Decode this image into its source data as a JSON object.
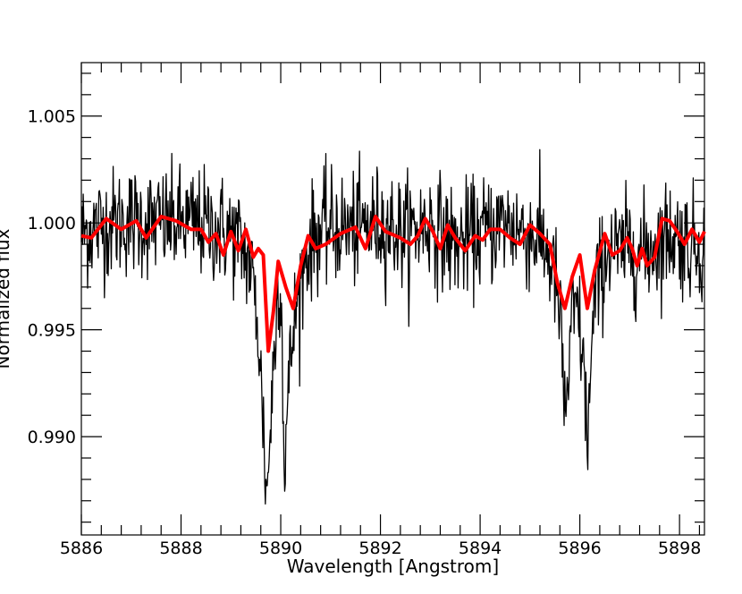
{
  "chart_data": {
    "type": "line",
    "title": "",
    "xlabel": "Wavelength [Angstrom]",
    "ylabel": "Normalized flux",
    "xlim": [
      5886.0,
      5898.5
    ],
    "ylim": [
      0.9854,
      1.0075
    ],
    "grid": false,
    "x_ticks": [
      {
        "value": 5886,
        "label": "5886"
      },
      {
        "value": 5888,
        "label": "5888"
      },
      {
        "value": 5890,
        "label": "5890"
      },
      {
        "value": 5892,
        "label": "5892"
      },
      {
        "value": 5894,
        "label": "5894"
      },
      {
        "value": 5896,
        "label": "5896"
      },
      {
        "value": 5898,
        "label": "5898"
      }
    ],
    "y_ticks": [
      {
        "value": 0.99,
        "label": "0.990"
      },
      {
        "value": 0.995,
        "label": "0.995"
      },
      {
        "value": 1.0,
        "label": "1.000"
      },
      {
        "value": 1.005,
        "label": "1.005"
      }
    ],
    "series": [
      {
        "color": "#000000",
        "noise_sigma": 0.0013,
        "x": [
          5886.0,
          5886.3,
          5886.6,
          5887.0,
          5887.5,
          5888.0,
          5888.5,
          5889.0,
          5889.2,
          5889.4,
          5889.55,
          5889.65,
          5889.72,
          5889.78,
          5889.85,
          5889.92,
          5890.0,
          5890.07,
          5890.15,
          5890.25,
          5890.35,
          5890.5,
          5890.7,
          5891.0,
          5891.5,
          5892.0,
          5892.5,
          5893.0,
          5893.5,
          5894.0,
          5894.5,
          5895.0,
          5895.3,
          5895.5,
          5895.62,
          5895.7,
          5895.78,
          5895.85,
          5895.95,
          5896.05,
          5896.15,
          5896.2,
          5896.3,
          5896.45,
          5896.6,
          5896.8,
          5897.0,
          5897.2,
          5897.5,
          5897.8,
          5898.0,
          5898.2,
          5898.5
        ],
        "y": [
          0.9995,
          0.9998,
          1.0,
          1.0001,
          1.0,
          1.0,
          0.9999,
          0.9995,
          0.999,
          0.998,
          0.995,
          0.9905,
          0.987,
          0.99,
          0.993,
          0.996,
          0.998,
          0.9885,
          0.992,
          0.995,
          0.9965,
          0.9985,
          0.9995,
          0.9998,
          0.9997,
          1.0,
          0.9995,
          1.0,
          0.999,
          0.9995,
          1.0,
          0.9995,
          0.999,
          0.9975,
          0.995,
          0.991,
          0.993,
          0.9955,
          0.996,
          0.994,
          0.99,
          0.992,
          0.9965,
          0.998,
          0.999,
          0.9985,
          0.999,
          0.9985,
          0.999,
          0.9995,
          0.9993,
          0.999,
          0.999
        ]
      },
      {
        "color": "#ff0000",
        "x": [
          5886.0,
          5886.2,
          5886.5,
          5886.8,
          5887.1,
          5887.3,
          5887.6,
          5887.9,
          5888.2,
          5888.4,
          5888.55,
          5888.7,
          5888.85,
          5889.0,
          5889.15,
          5889.3,
          5889.45,
          5889.55,
          5889.65,
          5889.75,
          5889.85,
          5889.95,
          5890.1,
          5890.25,
          5890.4,
          5890.55,
          5890.7,
          5890.9,
          5891.2,
          5891.5,
          5891.7,
          5891.9,
          5892.1,
          5892.4,
          5892.6,
          5892.75,
          5892.9,
          5893.05,
          5893.2,
          5893.35,
          5893.5,
          5893.7,
          5893.9,
          5894.05,
          5894.2,
          5894.4,
          5894.6,
          5894.8,
          5895.0,
          5895.2,
          5895.4,
          5895.55,
          5895.7,
          5895.85,
          5896.0,
          5896.15,
          5896.3,
          5896.5,
          5896.65,
          5896.8,
          5896.95,
          5897.05,
          5897.15,
          5897.25,
          5897.35,
          5897.5,
          5897.65,
          5897.8,
          5897.95,
          5898.1,
          5898.25,
          5898.4,
          5898.5
        ],
        "y": [
          0.9994,
          0.9993,
          1.0002,
          0.9997,
          1.0001,
          0.9993,
          1.0003,
          1.0001,
          0.9997,
          0.9997,
          0.9991,
          0.9995,
          0.9985,
          0.9996,
          0.9987,
          0.9997,
          0.9984,
          0.9988,
          0.9985,
          0.994,
          0.9958,
          0.9982,
          0.997,
          0.996,
          0.998,
          0.9994,
          0.9988,
          0.999,
          0.9995,
          0.9998,
          0.9988,
          1.0003,
          0.9996,
          0.9993,
          0.999,
          0.9994,
          1.0002,
          0.9996,
          0.9988,
          0.9999,
          0.9993,
          0.9987,
          0.9994,
          0.9992,
          0.9997,
          0.9997,
          0.9993,
          0.999,
          0.9999,
          0.9995,
          0.999,
          0.9972,
          0.996,
          0.9975,
          0.9985,
          0.996,
          0.9978,
          0.9995,
          0.9985,
          0.9987,
          0.9993,
          0.9988,
          0.998,
          0.9988,
          0.998,
          0.9984,
          1.0002,
          1.0001,
          0.9996,
          0.999,
          0.9997,
          0.9991,
          0.9996
        ]
      }
    ]
  }
}
